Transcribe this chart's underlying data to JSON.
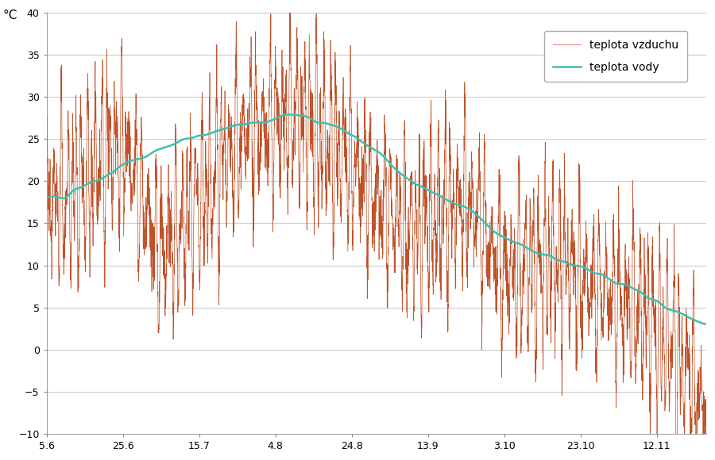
{
  "title": "",
  "ylabel": "°C",
  "xlabel": "",
  "ylim": [
    -10,
    40
  ],
  "yticks": [
    -10,
    -5,
    0,
    5,
    10,
    15,
    20,
    25,
    30,
    35,
    40
  ],
  "xtick_labels": [
    "5.6",
    "25.6",
    "15.7",
    "4.8",
    "24.8",
    "13.9",
    "3.10",
    "23.10",
    "12.11"
  ],
  "air_color": "#c0522a",
  "water_color": "#3dbfb0",
  "legend_air": "teplota vzduchu",
  "legend_water": "teplota vody",
  "background_color": "#ffffff",
  "grid_color": "#bbbbbb",
  "n_days": 173,
  "pts_per_day": 24
}
